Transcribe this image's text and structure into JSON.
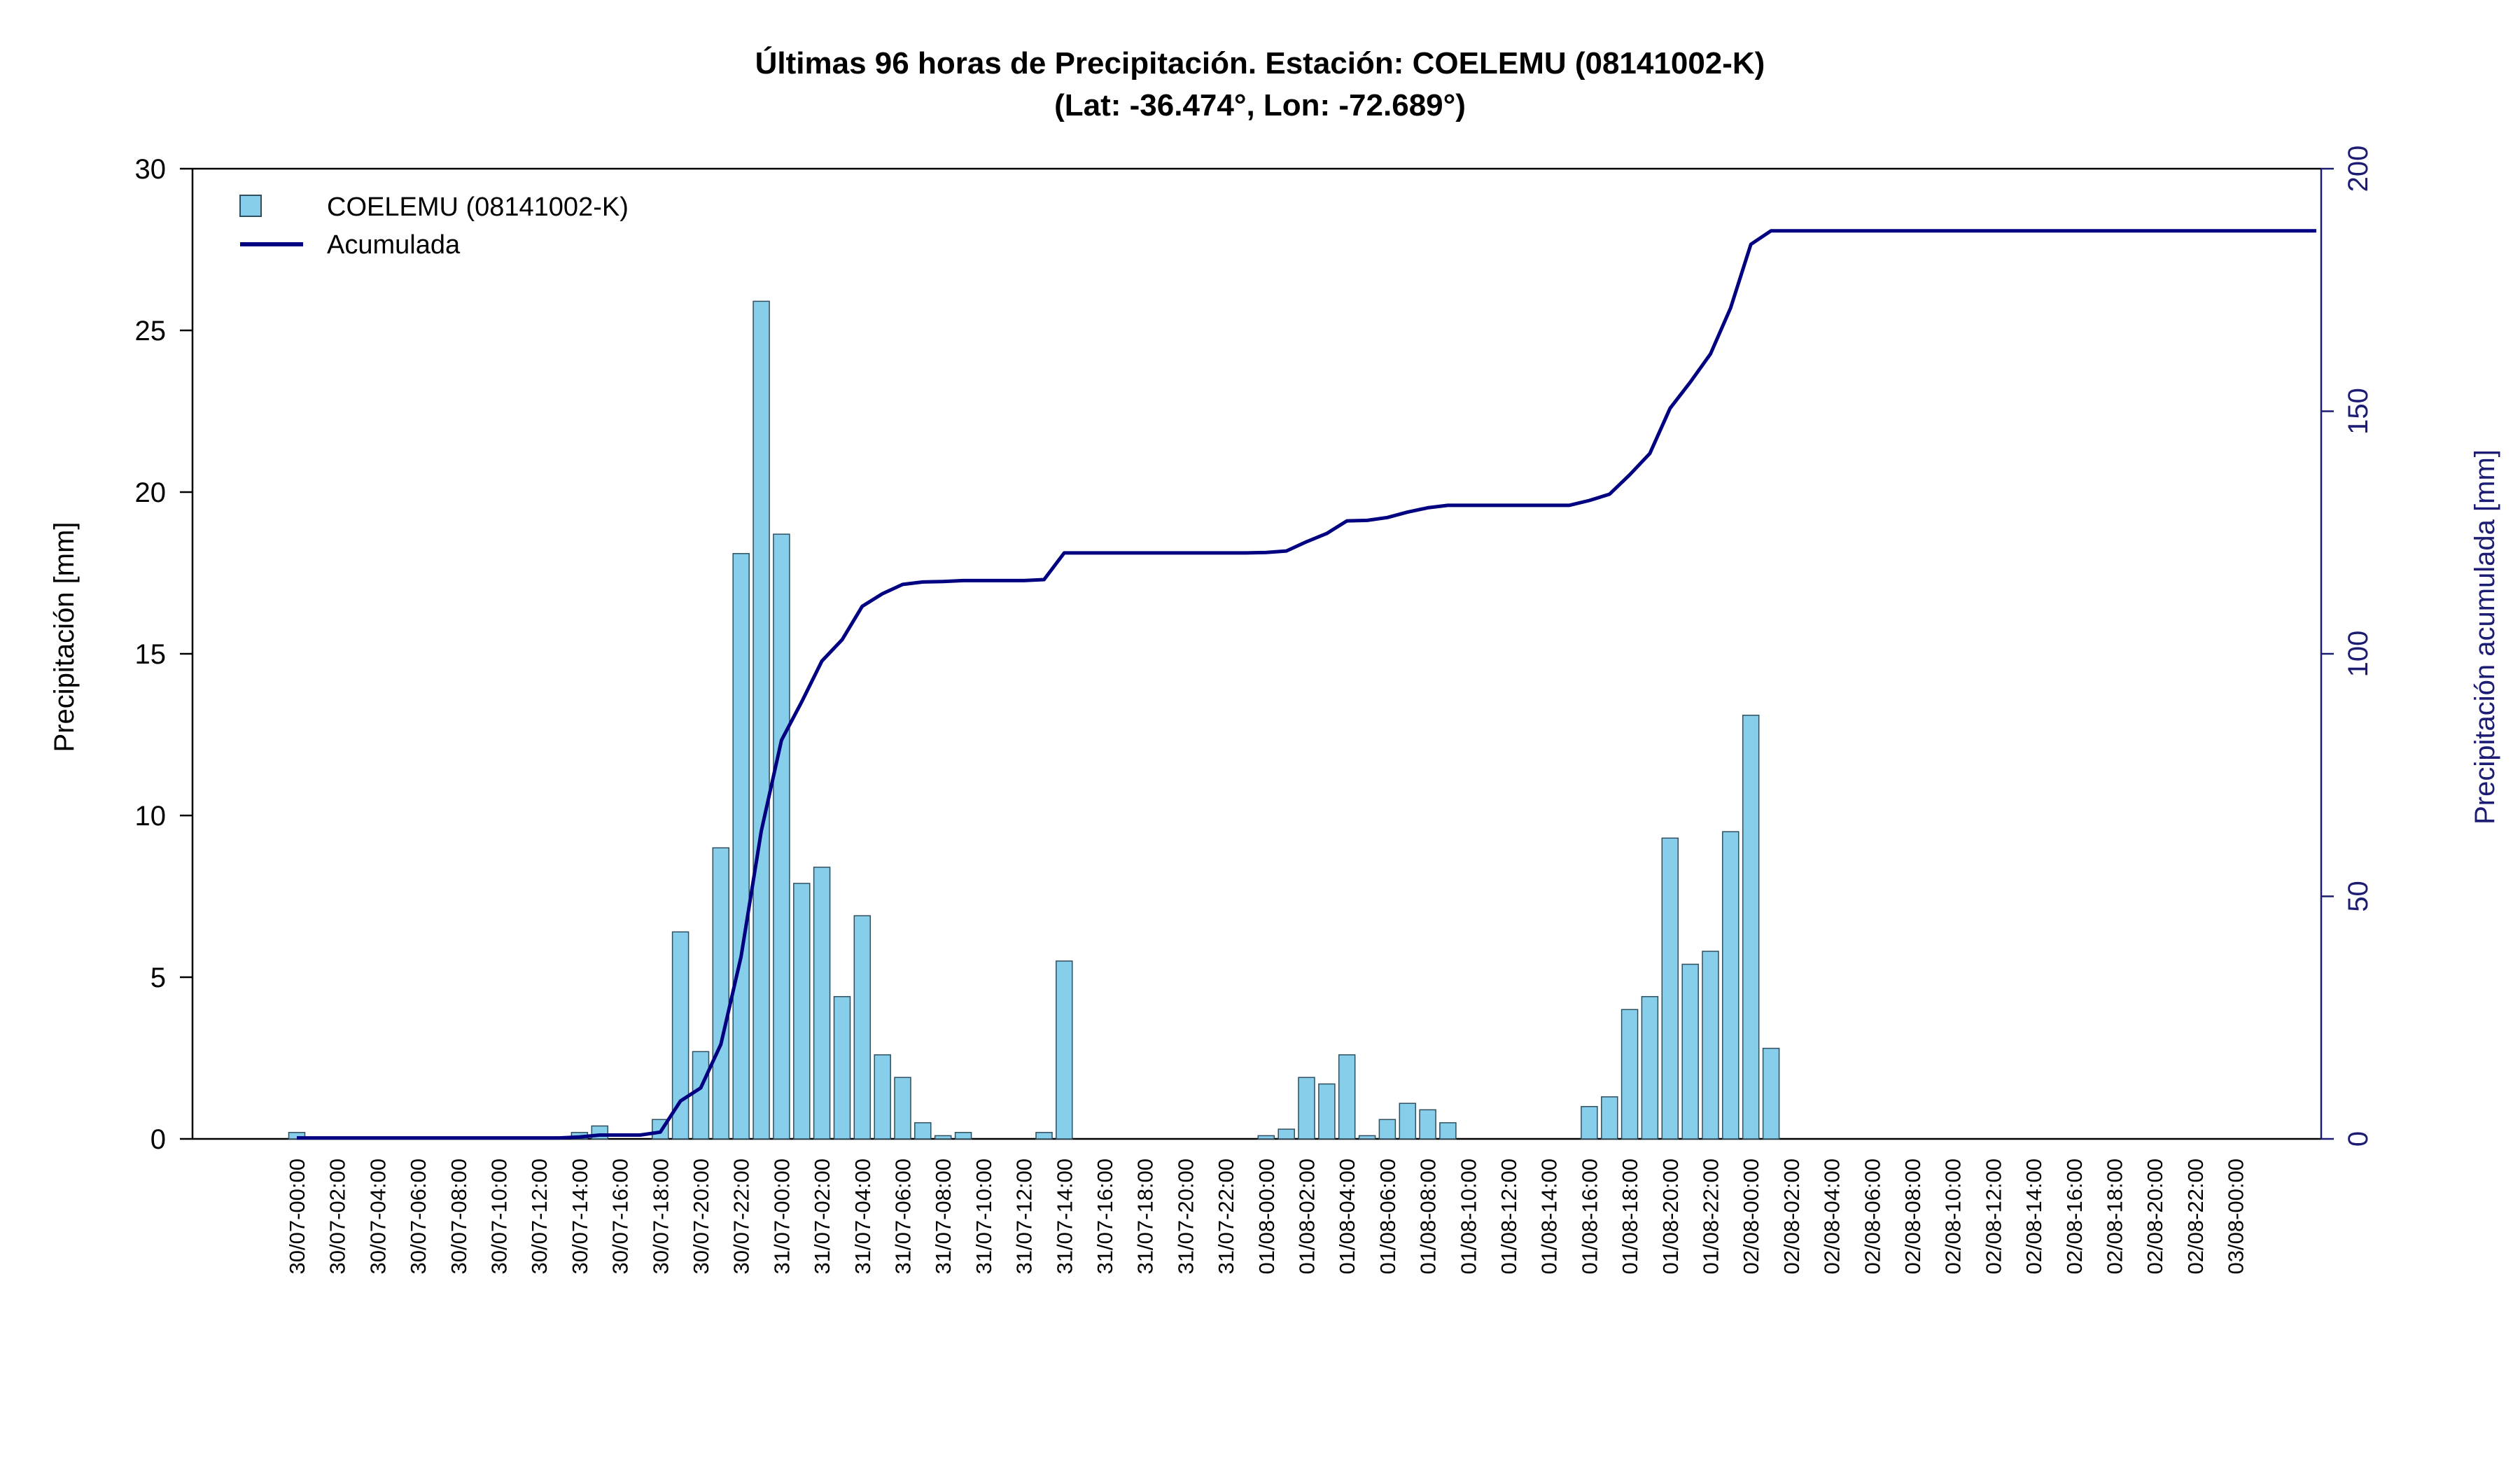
{
  "chart_data": {
    "type": "bar",
    "title": "Últimas 96 horas de Precipitación. Estación: COELEMU (08141002-K)",
    "subtitle": "(Lat: -36.474°, Lon: -72.689°)",
    "ylabel": "Precipitación [mm]",
    "ylabel_right": "Precipitación acumulada [mm]",
    "ylim": [
      0,
      30
    ],
    "ylim_right": [
      0,
      200
    ],
    "yticks": [
      0,
      5,
      10,
      15,
      20,
      25,
      30
    ],
    "yticks_right": [
      0,
      50,
      100,
      150,
      200
    ],
    "legend_position": "top-left",
    "colors": {
      "bars": "#87ceeb",
      "bar_stroke": "#2f4f5f",
      "line": "#000080",
      "right_axis": "#1c1c73"
    },
    "series": [
      {
        "name": "COELEMU (08141002-K)",
        "type": "bar",
        "values": [
          0.2,
          0,
          0,
          0,
          0,
          0,
          0,
          0,
          0,
          0,
          0,
          0,
          0,
          0,
          0.2,
          0.4,
          0,
          0,
          0.6,
          6.4,
          2.7,
          9.0,
          18.1,
          25.9,
          18.7,
          7.9,
          8.4,
          4.4,
          6.9,
          2.6,
          1.9,
          0.5,
          0.1,
          0.2,
          0,
          0,
          0,
          0.2,
          5.5,
          0,
          0,
          0,
          0,
          0,
          0,
          0,
          0,
          0,
          0.1,
          0.3,
          1.9,
          1.7,
          2.6,
          0.1,
          0.6,
          1.1,
          0.9,
          0.5,
          0,
          0,
          0,
          0,
          0,
          0,
          1.0,
          1.3,
          4.0,
          4.4,
          9.3,
          5.4,
          5.8,
          9.5,
          13.1,
          2.8,
          0,
          0,
          0,
          0,
          0,
          0,
          0,
          0,
          0,
          0,
          0,
          0,
          0,
          0,
          0,
          0,
          0,
          0,
          0,
          0,
          0,
          0,
          0,
          0,
          0,
          0,
          0,
          0,
          0
        ]
      },
      {
        "name": "Acumulada",
        "type": "line",
        "values": [
          0.2,
          0.2,
          0.2,
          0.2,
          0.2,
          0.2,
          0.2,
          0.2,
          0.2,
          0.2,
          0.2,
          0.2,
          0.2,
          0.2,
          0.4,
          0.8,
          0.8,
          0.8,
          1.4,
          7.8,
          10.5,
          19.5,
          37.6,
          63.5,
          82.2,
          90.1,
          98.5,
          102.9,
          109.8,
          112.4,
          114.3,
          114.8,
          114.9,
          115.1,
          115.1,
          115.1,
          115.1,
          115.3,
          120.8,
          120.8,
          120.8,
          120.8,
          120.8,
          120.8,
          120.8,
          120.8,
          120.8,
          120.8,
          120.9,
          121.2,
          123.1,
          124.8,
          127.4,
          127.5,
          128.1,
          129.2,
          130.1,
          130.6,
          130.6,
          130.6,
          130.6,
          130.6,
          130.6,
          130.6,
          131.6,
          132.9,
          136.9,
          141.3,
          150.6,
          156.0,
          161.8,
          171.3,
          184.4,
          187.2,
          187.2,
          187.2,
          187.2,
          187.2,
          187.2,
          187.2,
          187.2,
          187.2,
          187.2,
          187.2,
          187.2,
          187.2,
          187.2,
          187.2,
          187.2,
          187.2,
          187.2,
          187.2,
          187.2,
          187.2,
          187.2,
          187.2,
          187.2,
          187.2,
          187.2,
          187.2,
          187.2
        ]
      }
    ],
    "x_tick_labels": [
      "30/07-00:00",
      "30/07-02:00",
      "30/07-04:00",
      "30/07-06:00",
      "30/07-08:00",
      "30/07-10:00",
      "30/07-12:00",
      "30/07-14:00",
      "30/07-16:00",
      "30/07-18:00",
      "30/07-20:00",
      "30/07-22:00",
      "31/07-00:00",
      "31/07-02:00",
      "31/07-04:00",
      "31/07-06:00",
      "31/07-08:00",
      "31/07-10:00",
      "31/07-12:00",
      "31/07-14:00",
      "31/07-16:00",
      "31/07-18:00",
      "31/07-20:00",
      "31/07-22:00",
      "01/08-00:00",
      "01/08-02:00",
      "01/08-04:00",
      "01/08-06:00",
      "01/08-08:00",
      "01/08-10:00",
      "01/08-12:00",
      "01/08-14:00",
      "01/08-16:00",
      "01/08-18:00",
      "01/08-20:00",
      "01/08-22:00",
      "02/08-00:00",
      "02/08-02:00",
      "02/08-04:00",
      "02/08-06:00",
      "02/08-08:00",
      "02/08-10:00",
      "02/08-12:00",
      "02/08-14:00",
      "02/08-16:00",
      "02/08-18:00",
      "02/08-20:00",
      "02/08-22:00",
      "03/08-00:00"
    ]
  }
}
